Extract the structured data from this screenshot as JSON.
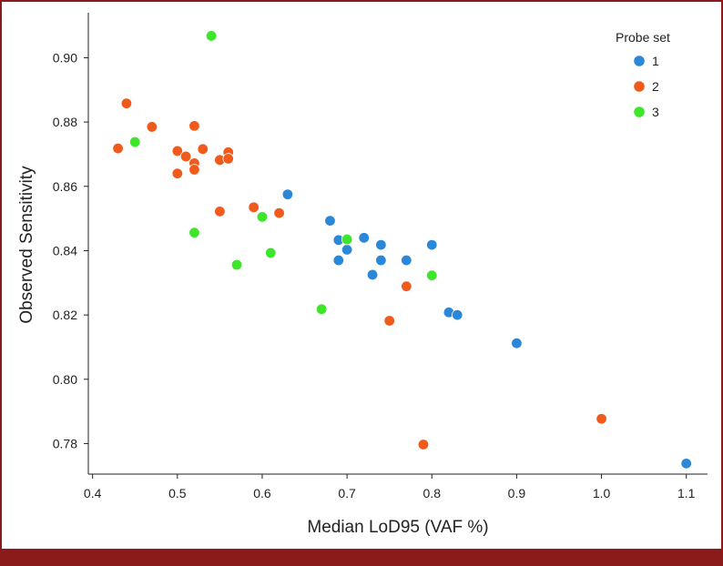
{
  "chart_data": {
    "type": "scatter",
    "title": "",
    "xlabel": "Median LoD95 (VAF %)",
    "ylabel": "Observed Sensitivity",
    "xlim": [
      0.395,
      1.125
    ],
    "ylim": [
      0.7705,
      0.914
    ],
    "xticks": [
      0.4,
      0.5,
      0.6,
      0.7,
      0.8,
      0.9,
      1.0,
      1.1
    ],
    "xtick_labels": [
      "0.4",
      "0.5",
      "0.6",
      "0.7",
      "0.8",
      "0.9",
      "1.0",
      "1.1"
    ],
    "yticks": [
      0.78,
      0.8,
      0.82,
      0.84,
      0.86,
      0.88,
      0.9
    ],
    "ytick_labels": [
      "0.78",
      "0.80",
      "0.82",
      "0.84",
      "0.86",
      "0.88",
      "0.90"
    ],
    "legend": {
      "title": "Probe set",
      "position": "top-right",
      "entries": [
        {
          "label": "1",
          "color": "#2b87d8"
        },
        {
          "label": "2",
          "color": "#f05a1c"
        },
        {
          "label": "3",
          "color": "#3de52b"
        }
      ]
    },
    "series": [
      {
        "name": "1",
        "color": "#2b87d8",
        "points": [
          [
            0.63,
            0.8575
          ],
          [
            0.68,
            0.8493
          ],
          [
            0.69,
            0.8433
          ],
          [
            0.69,
            0.837
          ],
          [
            0.7,
            0.8403
          ],
          [
            0.72,
            0.844
          ],
          [
            0.73,
            0.8325
          ],
          [
            0.74,
            0.8418
          ],
          [
            0.74,
            0.837
          ],
          [
            0.77,
            0.837
          ],
          [
            0.8,
            0.8418
          ],
          [
            0.82,
            0.8208
          ],
          [
            0.83,
            0.82
          ],
          [
            0.9,
            0.8112
          ],
          [
            1.1,
            0.7738
          ]
        ]
      },
      {
        "name": "2",
        "color": "#f05a1c",
        "points": [
          [
            0.43,
            0.8718
          ],
          [
            0.44,
            0.8858
          ],
          [
            0.47,
            0.8785
          ],
          [
            0.5,
            0.871
          ],
          [
            0.5,
            0.864
          ],
          [
            0.51,
            0.8693
          ],
          [
            0.52,
            0.8788
          ],
          [
            0.52,
            0.8672
          ],
          [
            0.52,
            0.8652
          ],
          [
            0.53,
            0.8716
          ],
          [
            0.55,
            0.8682
          ],
          [
            0.55,
            0.8522
          ],
          [
            0.56,
            0.8706
          ],
          [
            0.56,
            0.8686
          ],
          [
            0.59,
            0.8535
          ],
          [
            0.62,
            0.8517
          ],
          [
            0.75,
            0.8182
          ],
          [
            0.77,
            0.8289
          ],
          [
            0.79,
            0.7797
          ],
          [
            1.0,
            0.7877
          ]
        ]
      },
      {
        "name": "3",
        "color": "#3de52b",
        "points": [
          [
            0.45,
            0.8738
          ],
          [
            0.52,
            0.8456
          ],
          [
            0.54,
            0.9068
          ],
          [
            0.57,
            0.8356
          ],
          [
            0.6,
            0.8505
          ],
          [
            0.61,
            0.8393
          ],
          [
            0.67,
            0.8218
          ],
          [
            0.7,
            0.8435
          ],
          [
            0.8,
            0.8323
          ]
        ]
      }
    ]
  }
}
